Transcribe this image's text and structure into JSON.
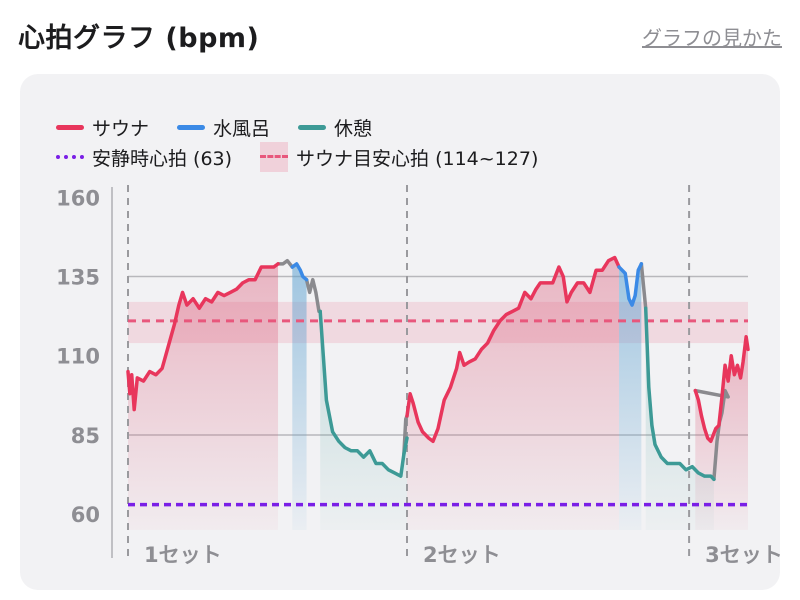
{
  "header": {
    "title": "心拍グラフ (bpm)",
    "help_link": "グラフの見かた"
  },
  "legend": {
    "sauna": "サウナ",
    "cold_bath": "水風呂",
    "rest": "休憩",
    "resting_hr": "安静時心拍 (63)",
    "target_band": "サウナ目安心拍 (114~127)"
  },
  "colors": {
    "sauna": "#e8365c",
    "cold_bath": "#3b8ae6",
    "rest": "#3d9a96",
    "transition": "#8a8a8e",
    "resting_hr": "#7a1fe6",
    "target_band": "#e8577c",
    "card_bg": "#f2f2f4"
  },
  "chart_data": {
    "type": "line",
    "ylim": [
      55,
      162
    ],
    "y_ticks": [
      160,
      135,
      110,
      85,
      60
    ],
    "resting_hr": 63,
    "target_band": [
      114,
      127
    ],
    "target_line": 121,
    "x_range": [
      0,
      100
    ],
    "sets": [
      {
        "label": "1セット",
        "x": 0
      },
      {
        "label": "2セット",
        "x": 45
      },
      {
        "label": "3セット",
        "x": 90.5
      }
    ],
    "series": [
      {
        "name": "サウナ",
        "color_key": "sauna",
        "segments": [
          [
            [
              0,
              105
            ],
            [
              0.3,
              98
            ],
            [
              0.6,
              104
            ],
            [
              1,
              93
            ],
            [
              1.5,
              103
            ],
            [
              2.5,
              102
            ],
            [
              3.5,
              105
            ],
            [
              4.5,
              104
            ],
            [
              5.5,
              106
            ],
            [
              6.5,
              113
            ],
            [
              7.5,
              120
            ],
            [
              8.2,
              126
            ],
            [
              8.8,
              130
            ],
            [
              9.5,
              126
            ],
            [
              10.5,
              128
            ],
            [
              11.5,
              125
            ],
            [
              12.5,
              128
            ],
            [
              13.5,
              127
            ],
            [
              14.5,
              130
            ],
            [
              15.5,
              129
            ],
            [
              16.5,
              130
            ],
            [
              17.5,
              131
            ],
            [
              18.5,
              133
            ],
            [
              19.5,
              134
            ],
            [
              20.5,
              134
            ],
            [
              21.5,
              138
            ],
            [
              22.5,
              138
            ],
            [
              23.5,
              138
            ],
            [
              24.2,
              139
            ]
          ],
          [
            [
              45,
              91
            ],
            [
              45.5,
              98
            ],
            [
              46,
              95
            ],
            [
              46.8,
              89
            ],
            [
              47.5,
              86
            ],
            [
              48.5,
              84
            ],
            [
              49.2,
              83
            ],
            [
              50,
              87
            ],
            [
              51,
              96
            ],
            [
              52,
              100
            ],
            [
              53,
              106
            ],
            [
              53.5,
              111
            ],
            [
              54.2,
              107
            ],
            [
              55,
              108
            ],
            [
              56,
              109
            ],
            [
              57,
              112
            ],
            [
              58,
              114
            ],
            [
              59,
              118
            ],
            [
              60,
              121
            ],
            [
              61,
              123
            ],
            [
              62,
              124
            ],
            [
              63,
              125
            ],
            [
              64,
              130
            ],
            [
              65,
              128
            ],
            [
              65.8,
              131
            ],
            [
              66.5,
              133
            ],
            [
              67.5,
              133
            ],
            [
              68.5,
              133
            ],
            [
              69.5,
              138
            ],
            [
              70.2,
              135
            ],
            [
              70.8,
              127
            ],
            [
              71.5,
              130
            ],
            [
              72.5,
              133
            ],
            [
              73.5,
              133
            ],
            [
              74.5,
              130
            ],
            [
              75.5,
              137
            ],
            [
              76.5,
              137
            ],
            [
              77.5,
              140
            ],
            [
              78.5,
              141
            ],
            [
              79.2,
              138
            ]
          ],
          [
            [
              91.5,
              99
            ],
            [
              92,
              96
            ],
            [
              92.5,
              91
            ],
            [
              93,
              87
            ],
            [
              93.5,
              84
            ],
            [
              94,
              83
            ],
            [
              94.8,
              87
            ],
            [
              95.3,
              88
            ],
            [
              95.8,
              97
            ],
            [
              96.3,
              107
            ],
            [
              96.8,
              102
            ],
            [
              97.3,
              110
            ],
            [
              97.8,
              104
            ],
            [
              98.3,
              107
            ],
            [
              98.8,
              103
            ],
            [
              99.2,
              108
            ],
            [
              99.7,
              116
            ],
            [
              100,
              112
            ]
          ]
        ]
      },
      {
        "name": "水風呂",
        "color_key": "cold_bath",
        "segments": [
          [
            [
              26.5,
              138
            ],
            [
              27.2,
              139
            ],
            [
              27.8,
              137
            ],
            [
              28.2,
              135
            ],
            [
              28.8,
              134
            ]
          ],
          [
            [
              79.2,
              138
            ],
            [
              80.2,
              136
            ],
            [
              80.8,
              128
            ],
            [
              81.3,
              126
            ],
            [
              81.8,
              129
            ],
            [
              82.3,
              137
            ],
            [
              82.8,
              139
            ]
          ]
        ]
      },
      {
        "name": "休憩",
        "color_key": "rest",
        "segments": [
          [
            [
              31,
              124
            ],
            [
              31.5,
              110
            ],
            [
              32,
              96
            ],
            [
              33,
              86
            ],
            [
              34,
              83
            ],
            [
              35,
              81
            ],
            [
              36,
              80
            ],
            [
              37,
              80
            ],
            [
              38,
              78
            ],
            [
              39,
              80
            ],
            [
              40,
              76
            ],
            [
              41,
              76
            ],
            [
              42,
              74
            ],
            [
              43,
              73
            ],
            [
              44,
              72
            ],
            [
              44.5,
              79
            ],
            [
              45,
              84
            ]
          ],
          [
            [
              83.5,
              125
            ],
            [
              84,
              100
            ],
            [
              84.5,
              88
            ],
            [
              85,
              82
            ],
            [
              86,
              78
            ],
            [
              87,
              76
            ],
            [
              88,
              76
            ],
            [
              89,
              76
            ],
            [
              90,
              74
            ],
            [
              91,
              75
            ],
            [
              92,
              73
            ],
            [
              93,
              72
            ],
            [
              94,
              72
            ],
            [
              94.5,
              71
            ]
          ]
        ]
      }
    ],
    "transition_segments": [
      [
        [
          24.2,
          139
        ],
        [
          25,
          139
        ],
        [
          25.7,
          140
        ],
        [
          26.5,
          138
        ]
      ],
      [
        [
          28.8,
          134
        ],
        [
          29.3,
          130
        ],
        [
          29.8,
          134
        ],
        [
          30.3,
          130
        ],
        [
          30.8,
          124
        ],
        [
          31,
          124
        ]
      ],
      [
        [
          44.5,
          79
        ],
        [
          44.8,
          90
        ],
        [
          45,
          91
        ]
      ],
      [
        [
          82.8,
          139
        ],
        [
          83.2,
          131
        ],
        [
          83.5,
          125
        ]
      ],
      [
        [
          94.5,
          71
        ],
        [
          95,
          83
        ],
        [
          95.4,
          89
        ],
        [
          95.8,
          92
        ],
        [
          96.3,
          99
        ],
        [
          96.8,
          97
        ],
        [
          91.5,
          99
        ]
      ]
    ],
    "area_segments": [
      {
        "color_key": "sauna",
        "x_from": 0,
        "x_to": 24.2,
        "series_index": 0,
        "segment_index": 0
      },
      {
        "color_key": "sauna",
        "x_from": 45,
        "x_to": 79.2,
        "series_index": 0,
        "segment_index": 1
      },
      {
        "color_key": "sauna",
        "x_from": 91.5,
        "x_to": 100,
        "series_index": 0,
        "segment_index": 2
      },
      {
        "color_key": "cold_bath",
        "series_index": 1,
        "segment_index": 0
      },
      {
        "color_key": "cold_bath",
        "series_index": 1,
        "segment_index": 1
      },
      {
        "color_key": "rest",
        "series_index": 2,
        "segment_index": 0
      },
      {
        "color_key": "rest",
        "series_index": 2,
        "segment_index": 1
      }
    ]
  }
}
